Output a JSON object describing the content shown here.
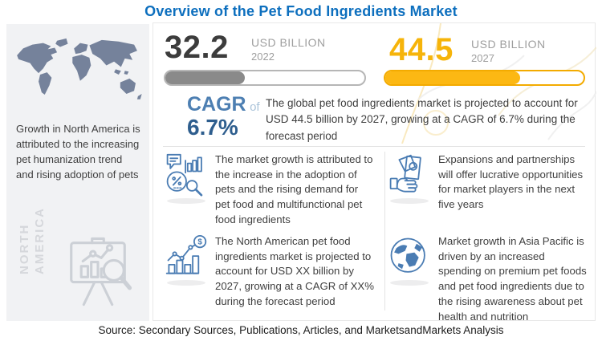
{
  "title": "Overview of the Pet Food Ingredients Market",
  "sidebar": {
    "note": "Growth in North America is attributed to the increasing pet humanization trend and rising adoption of pets",
    "region_label": "NORTH\nAMERICA"
  },
  "stats": {
    "current": {
      "value": "32.2",
      "unit": "USD BILLION",
      "year": "2022",
      "fill_percent": 40
    },
    "projected": {
      "value": "44.5",
      "unit": "USD BILLION",
      "year": "2027",
      "fill_percent": 68
    }
  },
  "cagr": {
    "label": "CAGR",
    "connector": "of",
    "value": "6.7%",
    "description": "The global pet food ingredients market is projected to account for USD 44.5 billion by 2027, growing at a CAGR of 6.7% during the forecast period"
  },
  "insights": [
    {
      "icon": "market-growth-analysis-icon",
      "text": "The market growth is attributed to the increase in the adoption of pets and the rising demand for pet food and multifunctional pet food ingredients"
    },
    {
      "icon": "money-hand-icon",
      "text": "Expansions and partnerships will offer lucrative opportunities for market players in the next five years"
    },
    {
      "icon": "growth-chart-dollar-icon",
      "text": "The North American pet food ingredients market is projected to account for USD XX billion by 2027, growing at a CAGR of XX% during the forecast period"
    },
    {
      "icon": "globe-icon",
      "text": "Market growth in Asia Pacific is driven by an increased spending on premium pet foods and pet food ingredients due to the rising awareness about pet health and nutrition"
    }
  ],
  "source": "Source: Secondary Sources, Publications, Articles, and MarketsandMarkets Analysis",
  "colors": {
    "title_blue": "#0d6fbe",
    "icon_blue": "#4a7cb3",
    "cagr_blue": "#4d7fb2",
    "cagr_value_blue": "#2e5e8e",
    "amber": "#fcb813",
    "bar_gray": "#8a8a8a",
    "map_slate": "#75829b"
  }
}
